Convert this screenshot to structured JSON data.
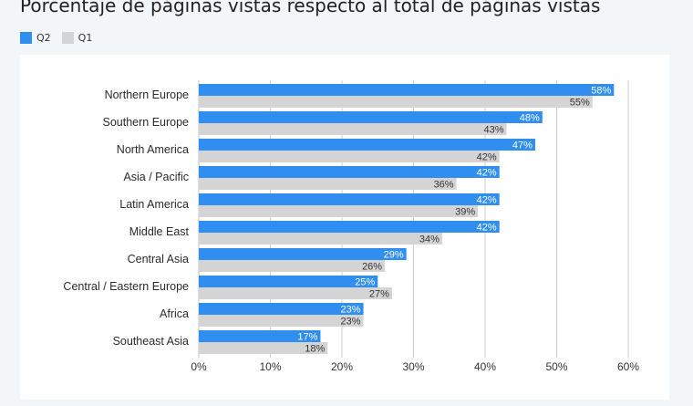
{
  "title": "Porcentaje de páginas vistas respecto al total de páginas vistas",
  "colors": {
    "q2": "#2f8ef0",
    "q1": "#d4d4d4",
    "grid": "#cfcfcf",
    "frame": "#f2f6f8"
  },
  "chart_data": {
    "type": "bar",
    "orientation": "horizontal",
    "title": "Porcentaje de páginas vistas respecto al total de páginas vistas",
    "categories": [
      "Northern Europe",
      "Southern Europe",
      "North America",
      "Asia / Pacific",
      "Latin America",
      "Middle East",
      "Central Asia",
      "Central / Eastern Europe",
      "Africa",
      "Southeast Asia"
    ],
    "series": [
      {
        "name": "Q2",
        "values": [
          58,
          48,
          47,
          42,
          42,
          42,
          29,
          25,
          23,
          17
        ],
        "labels": [
          "58%",
          "48%",
          "47%",
          "42%",
          "42%",
          "42%",
          "29%",
          "25%",
          "23%",
          "17%"
        ]
      },
      {
        "name": "Q1",
        "values": [
          55,
          43,
          42,
          36,
          39,
          34,
          26,
          27,
          23,
          18
        ],
        "labels": [
          "55%",
          "43%",
          "42%",
          "36%",
          "39%",
          "34%",
          "26%",
          "27%",
          "23%",
          "18%"
        ]
      }
    ],
    "xlim": [
      0,
      60
    ],
    "xticks": [
      "0%",
      "10%",
      "20%",
      "30%",
      "40%",
      "50%",
      "60%"
    ],
    "grid": true,
    "legend_position": "top-left"
  }
}
